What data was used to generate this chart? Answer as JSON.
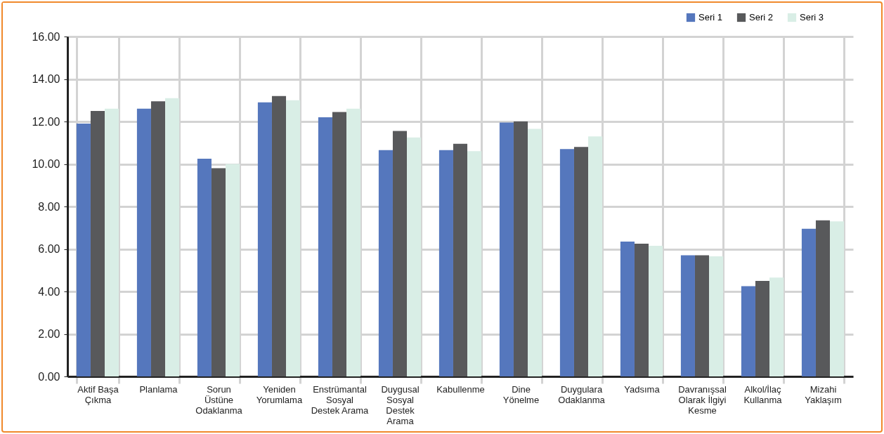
{
  "chart_data": {
    "type": "bar",
    "categories": [
      "Aktif Başa\nÇıkma",
      "Planlama",
      "Sorun\nÜstüne\nOdaklanma",
      "Yeniden\nYorumlama",
      "Enstrümantal\nSosyal\nDestek Arama",
      "Duygusal\nSosyal\nDestek\nArama",
      "Kabullenme",
      "Dine\nYönelme",
      "Duygulara\nOdaklanma",
      "Yadsıma",
      "Davranışsal\nOlarak İlgiyi\nKesme",
      "Alkol/İlaç\nKullanma",
      "Mizahi\nYaklaşım"
    ],
    "series": [
      {
        "name": "Seri 1",
        "color": "#5577bd",
        "values": [
          11.9,
          12.6,
          10.25,
          12.9,
          12.2,
          10.65,
          10.65,
          11.95,
          10.7,
          6.35,
          5.7,
          4.25,
          6.95
        ]
      },
      {
        "name": "Seri 2",
        "color": "#58595b",
        "values": [
          12.5,
          12.95,
          9.8,
          13.2,
          12.45,
          11.55,
          10.95,
          12.0,
          10.8,
          6.25,
          5.7,
          4.5,
          7.35
        ]
      },
      {
        "name": "Seri 3",
        "color": "#d9eee6",
        "values": [
          12.6,
          13.1,
          10.0,
          13.0,
          12.6,
          11.25,
          10.6,
          11.65,
          11.3,
          6.15,
          5.65,
          4.65,
          7.3
        ]
      }
    ],
    "ylim": [
      0,
      16
    ],
    "yticks": [
      {
        "value": 0,
        "label": "0.00"
      },
      {
        "value": 2,
        "label": "2.00"
      },
      {
        "value": 4,
        "label": "4.00"
      },
      {
        "value": 6,
        "label": "6.00"
      },
      {
        "value": 8,
        "label": "8.00"
      },
      {
        "value": 10,
        "label": "10.00"
      },
      {
        "value": 12,
        "label": "12.00"
      },
      {
        "value": 14,
        "label": "14.00"
      },
      {
        "value": 16,
        "label": "16.00"
      }
    ],
    "grid": true,
    "legend": "top right"
  }
}
